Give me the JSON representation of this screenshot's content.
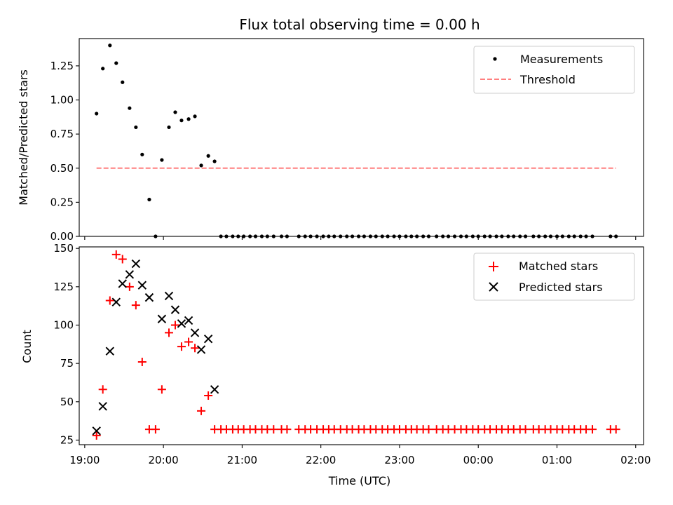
{
  "chart_data": [
    {
      "type": "scatter",
      "title": "Flux total observing time = 0.00 h",
      "ylabel": "Matched/Predicted stars",
      "xlabel": "",
      "ylim": [
        0,
        1.45
      ],
      "xlim": [
        18.93,
        26.1
      ],
      "yticks": [
        0.0,
        0.25,
        0.5,
        0.75,
        1.0,
        1.25
      ],
      "ytick_labels": [
        "0.00",
        "0.25",
        "0.50",
        "0.75",
        "1.00",
        "1.25"
      ],
      "legend_position": "top-right",
      "series": [
        {
          "name": "Measurements",
          "marker": "dot",
          "color": "#000000",
          "x": [
            19.15,
            19.23,
            19.32,
            19.4,
            19.48,
            19.57,
            19.65,
            19.73,
            19.82,
            19.9,
            19.98,
            20.07,
            20.15,
            20.23,
            20.32,
            20.4,
            20.48,
            20.57,
            20.65,
            20.73,
            20.8,
            20.88,
            20.95,
            21.02,
            21.1,
            21.17,
            21.25,
            21.32,
            21.4,
            21.5,
            21.57,
            21.72,
            21.8,
            21.87,
            21.95,
            22.03,
            22.1,
            22.17,
            22.25,
            22.33,
            22.4,
            22.48,
            22.55,
            22.63,
            22.7,
            22.78,
            22.85,
            22.93,
            23.0,
            23.08,
            23.15,
            23.22,
            23.3,
            23.37,
            23.47,
            23.55,
            23.62,
            23.7,
            23.78,
            23.85,
            23.93,
            24.0,
            24.08,
            24.15,
            24.23,
            24.3,
            24.38,
            24.45,
            24.53,
            24.6,
            24.7,
            24.77,
            24.85,
            24.92,
            25.0,
            25.07,
            25.15,
            25.22,
            25.3,
            25.37,
            25.45,
            25.68,
            25.75
          ],
          "y": [
            0.9,
            1.23,
            1.4,
            1.27,
            1.13,
            0.94,
            0.8,
            0.6,
            0.27,
            0.0,
            0.56,
            0.8,
            0.91,
            0.85,
            0.86,
            0.88,
            0.52,
            0.59,
            0.55,
            0,
            0,
            0,
            0,
            0,
            0,
            0,
            0,
            0,
            0,
            0,
            0,
            0,
            0,
            0,
            0,
            0,
            0,
            0,
            0,
            0,
            0,
            0,
            0,
            0,
            0,
            0,
            0,
            0,
            0,
            0,
            0,
            0,
            0,
            0,
            0,
            0,
            0,
            0,
            0,
            0,
            0,
            0,
            0,
            0,
            0,
            0,
            0,
            0,
            0,
            0,
            0,
            0,
            0,
            0,
            0,
            0,
            0,
            0,
            0,
            0,
            0,
            0,
            0
          ]
        },
        {
          "name": "Threshold",
          "marker": "dashed-line",
          "color": "#ff7f7f",
          "x": [
            19.15,
            25.75
          ],
          "y": [
            0.5,
            0.5
          ]
        }
      ]
    },
    {
      "type": "scatter",
      "title": "",
      "ylabel": "Count",
      "xlabel": "Time (UTC)",
      "ylim": [
        22,
        151
      ],
      "xlim": [
        18.93,
        26.1
      ],
      "yticks": [
        25,
        50,
        75,
        100,
        125,
        150
      ],
      "ytick_labels": [
        "25",
        "50",
        "75",
        "100",
        "125",
        "150"
      ],
      "xticks": [
        19,
        20,
        21,
        22,
        23,
        24,
        25,
        26
      ],
      "xtick_labels": [
        "19:00",
        "20:00",
        "21:00",
        "22:00",
        "23:00",
        "00:00",
        "01:00",
        "02:00"
      ],
      "legend_position": "top-right",
      "series": [
        {
          "name": "Matched stars",
          "marker": "plus",
          "color": "#ff0000",
          "x": [
            19.15,
            19.23,
            19.32,
            19.4,
            19.48,
            19.57,
            19.65,
            19.73,
            19.82,
            19.9,
            19.98,
            20.07,
            20.15,
            20.23,
            20.32,
            20.4,
            20.48,
            20.57,
            20.65,
            20.73,
            20.8,
            20.88,
            20.95,
            21.02,
            21.1,
            21.17,
            21.25,
            21.32,
            21.4,
            21.5,
            21.57,
            21.72,
            21.8,
            21.87,
            21.95,
            22.03,
            22.1,
            22.17,
            22.25,
            22.33,
            22.4,
            22.48,
            22.55,
            22.63,
            22.7,
            22.78,
            22.85,
            22.93,
            23.0,
            23.08,
            23.15,
            23.22,
            23.3,
            23.37,
            23.47,
            23.55,
            23.62,
            23.7,
            23.78,
            23.85,
            23.93,
            24.0,
            24.08,
            24.15,
            24.23,
            24.3,
            24.38,
            24.45,
            24.53,
            24.6,
            24.7,
            24.77,
            24.85,
            24.92,
            25.0,
            25.07,
            25.15,
            25.22,
            25.3,
            25.37,
            25.45,
            25.68,
            25.75
          ],
          "y": [
            28,
            58,
            116,
            146,
            143,
            125,
            113,
            76,
            32,
            32,
            58,
            95,
            100,
            86,
            89,
            85,
            44,
            54,
            32,
            32,
            32,
            32,
            32,
            32,
            32,
            32,
            32,
            32,
            32,
            32,
            32,
            32,
            32,
            32,
            32,
            32,
            32,
            32,
            32,
            32,
            32,
            32,
            32,
            32,
            32,
            32,
            32,
            32,
            32,
            32,
            32,
            32,
            32,
            32,
            32,
            32,
            32,
            32,
            32,
            32,
            32,
            32,
            32,
            32,
            32,
            32,
            32,
            32,
            32,
            32,
            32,
            32,
            32,
            32,
            32,
            32,
            32,
            32,
            32,
            32,
            32,
            32,
            32
          ]
        },
        {
          "name": "Predicted stars",
          "marker": "x",
          "color": "#000000",
          "x": [
            19.15,
            19.23,
            19.32,
            19.4,
            19.48,
            19.57,
            19.65,
            19.73,
            19.82,
            19.98,
            20.07,
            20.15,
            20.23,
            20.32,
            20.4,
            20.48,
            20.57,
            20.65
          ],
          "y": [
            31,
            47,
            83,
            115,
            127,
            133,
            140,
            126,
            118,
            104,
            119,
            110,
            101,
            103,
            95,
            84,
            91,
            58
          ]
        }
      ]
    }
  ]
}
